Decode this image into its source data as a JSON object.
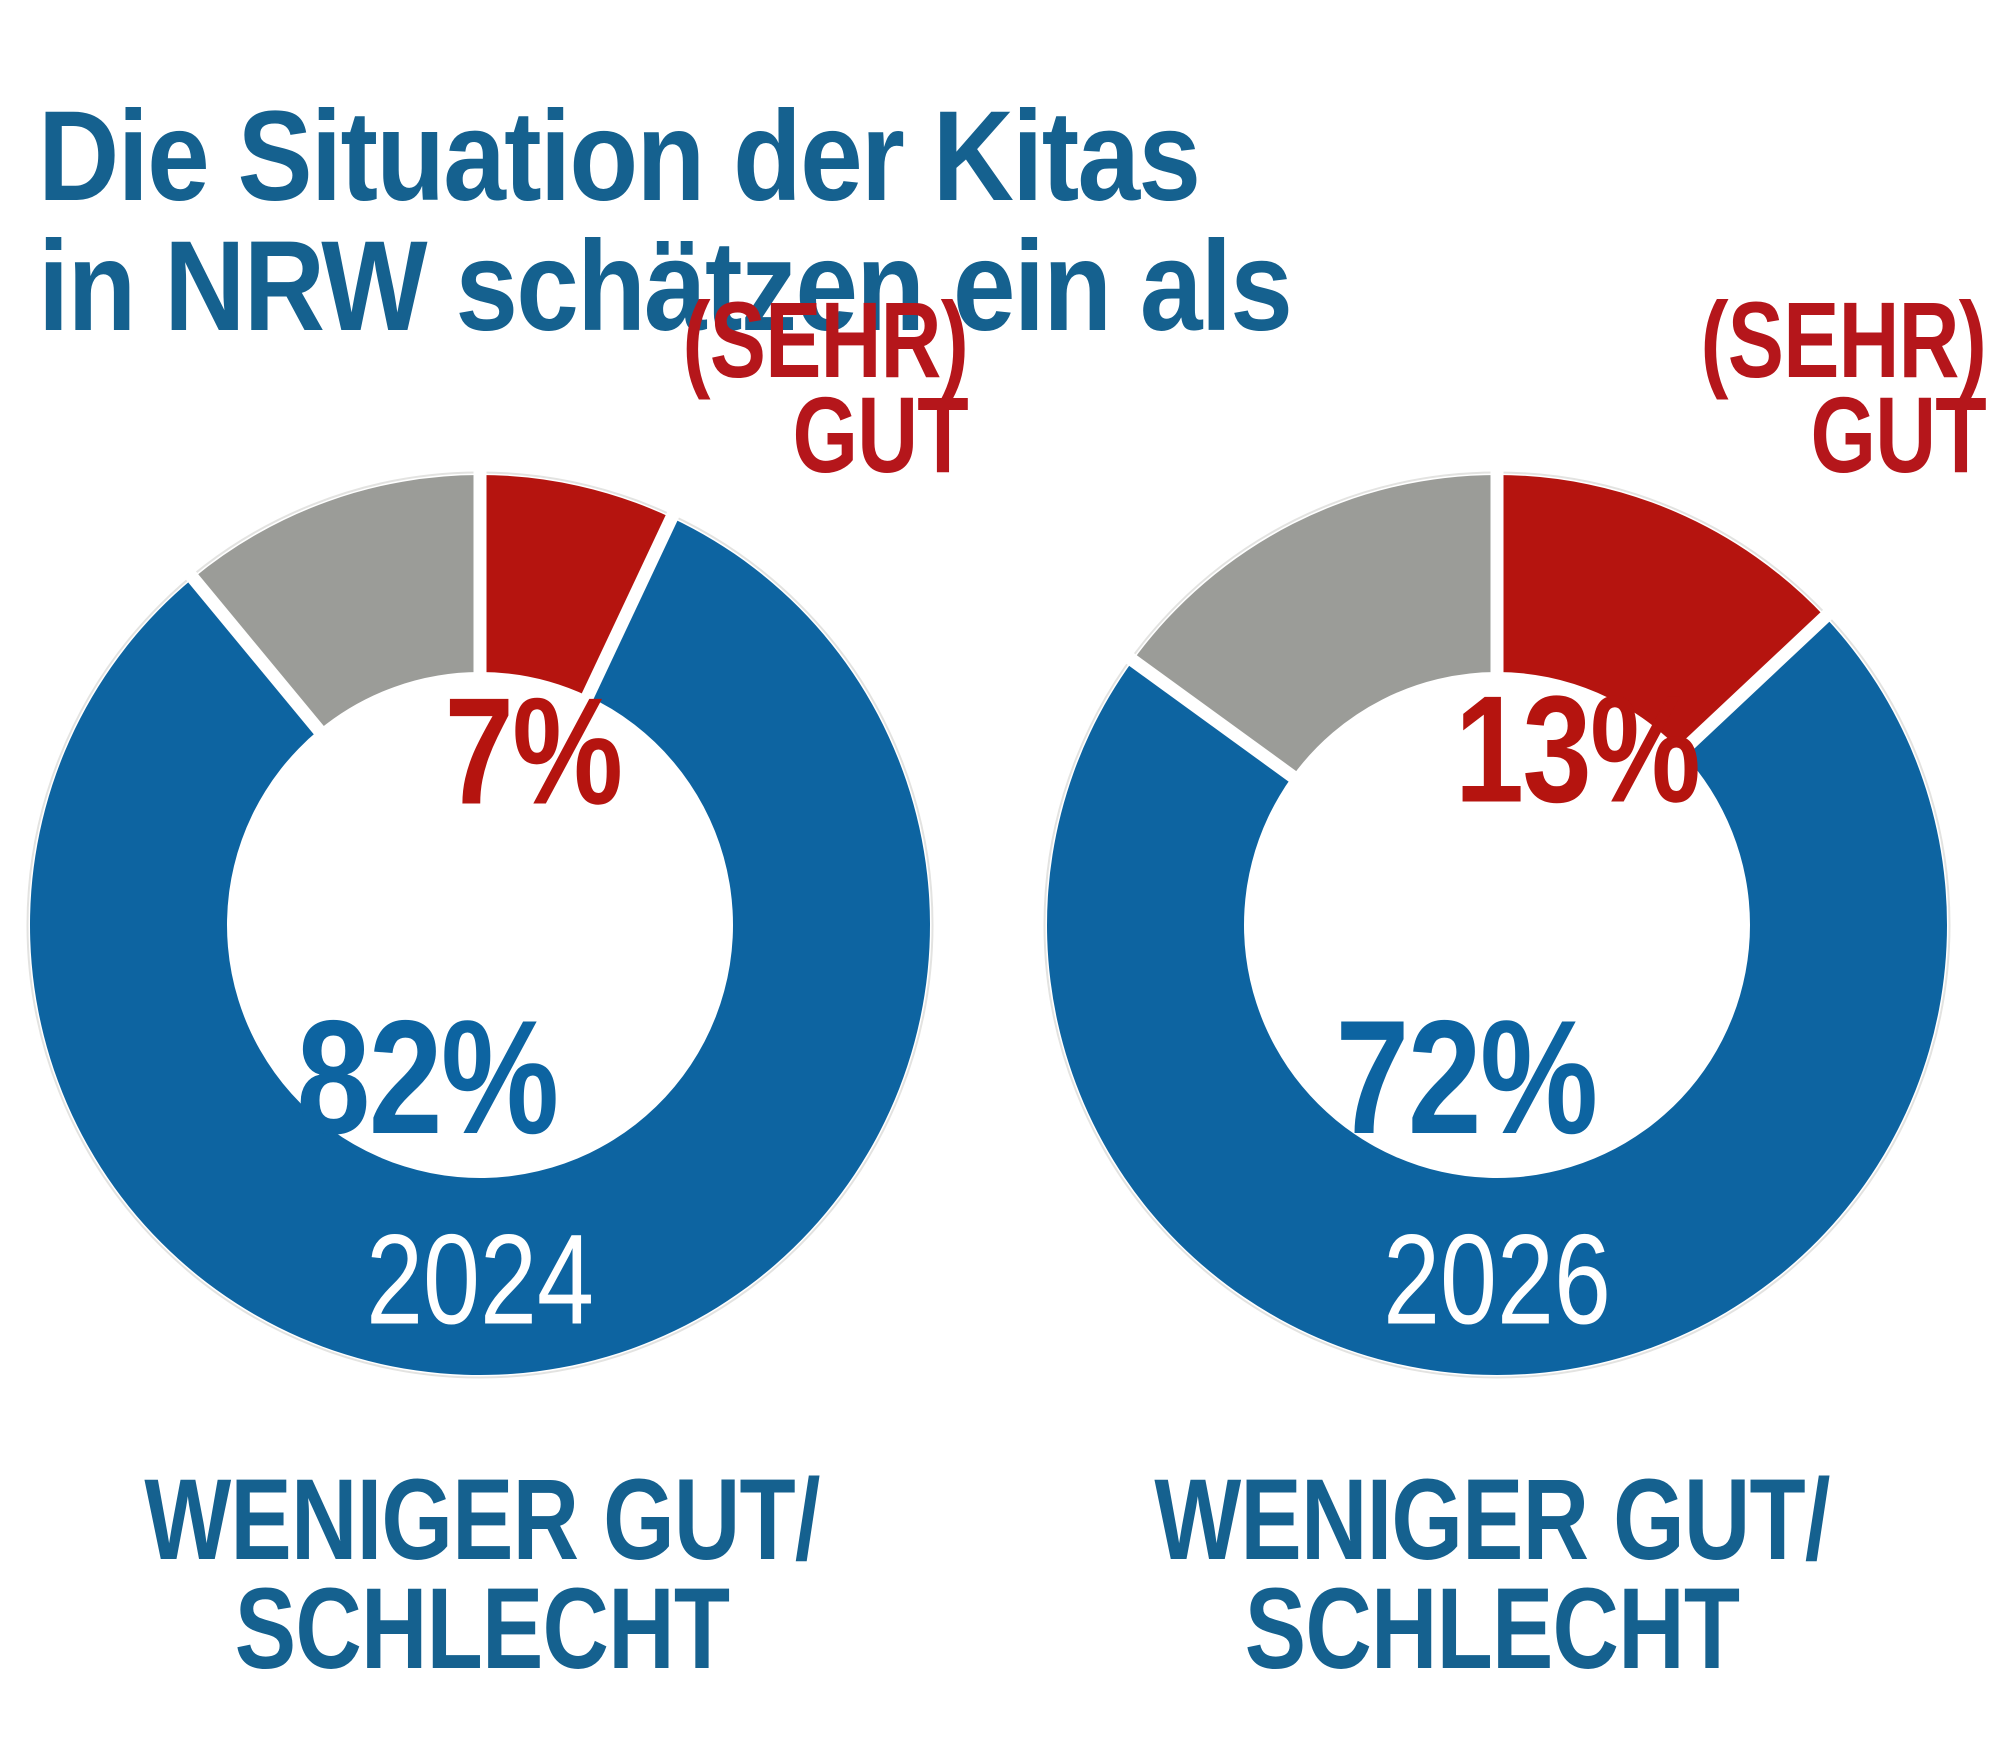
{
  "title": {
    "line1": "Die Situation der Kitas",
    "line2": "in NRW schätzen ein als"
  },
  "colors": {
    "blue": "#0d64a1",
    "red": "#b5140f",
    "gray": "#9b9c98",
    "title_blue": "#15618f",
    "halo": "#e3e3e1",
    "gap_white": "#ffffff"
  },
  "chart_data": [
    {
      "type": "donut",
      "year_label": "2024",
      "callout": {
        "line1": "(SEHR)",
        "line2": "GUT"
      },
      "slices": [
        {
          "label": "(SEHR) GUT",
          "value": 7,
          "pct_label": "7%",
          "color": "#b5140f"
        },
        {
          "label": "WENIGER GUT/ SCHLECHT",
          "value": 82,
          "pct_label": "82%",
          "color": "#0d64a1"
        },
        {
          "label": "",
          "value": 11,
          "pct_label": "",
          "color": "#9b9c98"
        }
      ],
      "bottom_label": {
        "line1": "WENIGER GUT/",
        "line2": "SCHLECHT"
      }
    },
    {
      "type": "donut",
      "year_label": "2026",
      "callout": {
        "line1": "(SEHR)",
        "line2": "GUT"
      },
      "slices": [
        {
          "label": "(SEHR) GUT",
          "value": 13,
          "pct_label": "13%",
          "color": "#b5140f"
        },
        {
          "label": "WENIGER GUT/ SCHLECHT",
          "value": 72,
          "pct_label": "72%",
          "color": "#0d64a1"
        },
        {
          "label": "",
          "value": 15,
          "pct_label": "",
          "color": "#9b9c98"
        }
      ],
      "bottom_label": {
        "line1": "WENIGER GUT/",
        "line2": "SCHLECHT"
      }
    }
  ]
}
